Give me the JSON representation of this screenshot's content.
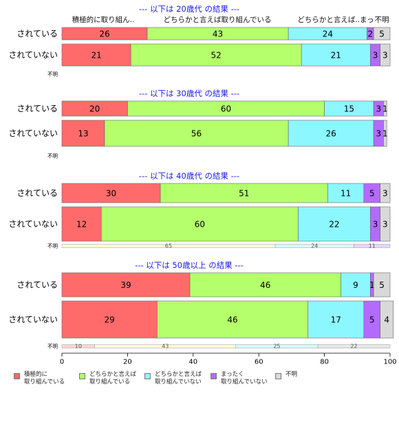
{
  "chart_data": {
    "type": "bar",
    "orientation": "horizontal",
    "stacked": true,
    "xlim": [
      0,
      100
    ],
    "xticks": [
      0,
      20,
      40,
      60,
      80,
      100
    ],
    "categories": [
      "積極的に取り組んでいる",
      "どちらかと言えば取り組んでいる",
      "どちらかと言えば取り組んでいない",
      "まったく取り組んでいない",
      "不明"
    ],
    "colors": [
      "#ff6b6b",
      "#b4ff6b",
      "#8cf7ff",
      "#b36bff",
      "#d9d9d9"
    ],
    "light_colors": [
      "#ffd6d6",
      "#ffffd2",
      "#d8fbff",
      "#e6d6ff",
      "#e8e8e8"
    ],
    "top_labels": [
      "積極的に取り組ん..",
      "どちらかと言えば取り組んでいる",
      "どちらかと言えば..まっ",
      "不明"
    ],
    "groups": [
      {
        "title": "--- 以下は 20歳代 の結果 ---",
        "rows": [
          {
            "label": "されている",
            "values": [
              26,
              43,
              24,
              2,
              5
            ]
          },
          {
            "label": "されていない",
            "values": [
              21,
              52,
              21,
              3,
              3
            ]
          }
        ],
        "unknown": {
          "label": "不明",
          "values": null
        }
      },
      {
        "title": "--- 以下は 30歳代 の結果 ---",
        "rows": [
          {
            "label": "されている",
            "values": [
              20,
              60,
              15,
              3,
              1
            ]
          },
          {
            "label": "されていない",
            "values": [
              13,
              56,
              26,
              3,
              1
            ]
          }
        ],
        "unknown": {
          "label": "不明",
          "values": null
        }
      },
      {
        "title": "--- 以下は 40歳代 の結果 ---",
        "rows": [
          {
            "label": "されている",
            "values": [
              30,
              51,
              11,
              5,
              3
            ]
          },
          {
            "label": "されていない",
            "values": [
              12,
              60,
              22,
              3,
              3
            ]
          }
        ],
        "unknown": {
          "label": "不明",
          "values": [
            0,
            65,
            24,
            11,
            0
          ],
          "shown_labels": [
            "",
            "65",
            "24",
            "11",
            ""
          ]
        }
      },
      {
        "title": "--- 以下は 50歳以上 の結果 ---",
        "rows": [
          {
            "label": "されている",
            "values": [
              39,
              46,
              9,
              1,
              5
            ]
          },
          {
            "label": "されていない",
            "values": [
              29,
              46,
              17,
              5,
              4
            ]
          }
        ],
        "unknown": {
          "label": "不明",
          "values": [
            10,
            43,
            25,
            0,
            22
          ],
          "shown_labels": [
            "10",
            "43",
            "25",
            "",
            "22"
          ]
        }
      }
    ]
  },
  "legend": [
    {
      "text": "積極的に\n取り組んでいる",
      "color": "#ff6b6b"
    },
    {
      "text": "どちらかと言えば\n取り組んでいる",
      "color": "#b4ff6b"
    },
    {
      "text": "どちらかと言えば\n取り組んでいない",
      "color": "#8cf7ff"
    },
    {
      "text": "まったく\n取り組んでいない",
      "color": "#b36bff"
    },
    {
      "text": "不明",
      "color": "#d9d9d9"
    }
  ]
}
